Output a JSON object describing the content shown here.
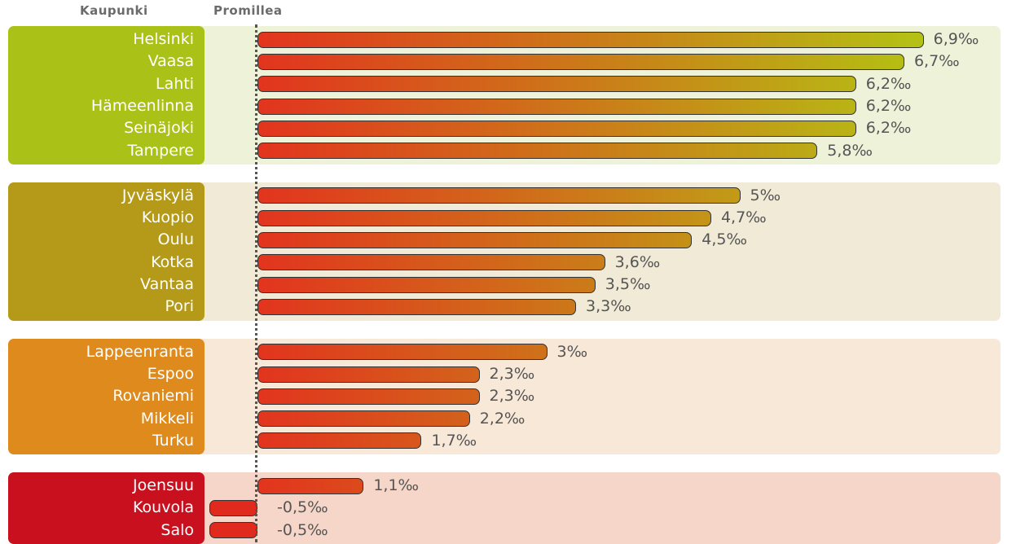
{
  "chart_data": {
    "type": "bar",
    "orientation": "horizontal",
    "column_headers": {
      "category": "Kaupunki",
      "value": "Promillea"
    },
    "unit": "‰",
    "groups": [
      {
        "color": "#aac218",
        "panel_color": "#eef2d8",
        "items": [
          {
            "city": "Helsinki",
            "value": 6.9,
            "label": "6,9‰"
          },
          {
            "city": "Vaasa",
            "value": 6.7,
            "label": "6,7‰"
          },
          {
            "city": "Lahti",
            "value": 6.2,
            "label": "6,2‰"
          },
          {
            "city": "Hämeenlinna",
            "value": 6.2,
            "label": "6,2‰"
          },
          {
            "city": "Seinäjoki",
            "value": 6.2,
            "label": "6,2‰"
          },
          {
            "city": "Tampere",
            "value": 5.8,
            "label": "5,8‰"
          }
        ]
      },
      {
        "color": "#b49a18",
        "panel_color": "#f1ead6",
        "items": [
          {
            "city": "Jyväskylä",
            "value": 5.0,
            "label": "5‰"
          },
          {
            "city": "Kuopio",
            "value": 4.7,
            "label": "4,7‰"
          },
          {
            "city": "Oulu",
            "value": 4.5,
            "label": "4,5‰"
          },
          {
            "city": "Kotka",
            "value": 3.6,
            "label": "3,6‰"
          },
          {
            "city": "Vantaa",
            "value": 3.5,
            "label": "3,5‰"
          },
          {
            "city": "Pori",
            "value": 3.3,
            "label": "3,3‰"
          }
        ]
      },
      {
        "color": "#de8a1c",
        "panel_color": "#f8e8d8",
        "items": [
          {
            "city": "Lappeenranta",
            "value": 3.0,
            "label": "3‰"
          },
          {
            "city": "Espoo",
            "value": 2.3,
            "label": "2,3‰"
          },
          {
            "city": "Rovaniemi",
            "value": 2.3,
            "label": "2,3‰"
          },
          {
            "city": "Mikkeli",
            "value": 2.2,
            "label": "2,2‰"
          },
          {
            "city": "Turku",
            "value": 1.7,
            "label": "1,7‰"
          }
        ]
      },
      {
        "color": "#c8101e",
        "panel_color": "#f6d6c8",
        "items": [
          {
            "city": "Joensuu",
            "value": 1.1,
            "label": "1,1‰"
          },
          {
            "city": "Kouvola",
            "value": -0.5,
            "label": "-0,5‰"
          },
          {
            "city": "Salo",
            "value": -0.5,
            "label": "-0,5‰"
          }
        ]
      }
    ],
    "bar_gradient": {
      "start": "#e2341e",
      "end": "#b4c214"
    },
    "negative_bar_color": "#e02a1e"
  }
}
